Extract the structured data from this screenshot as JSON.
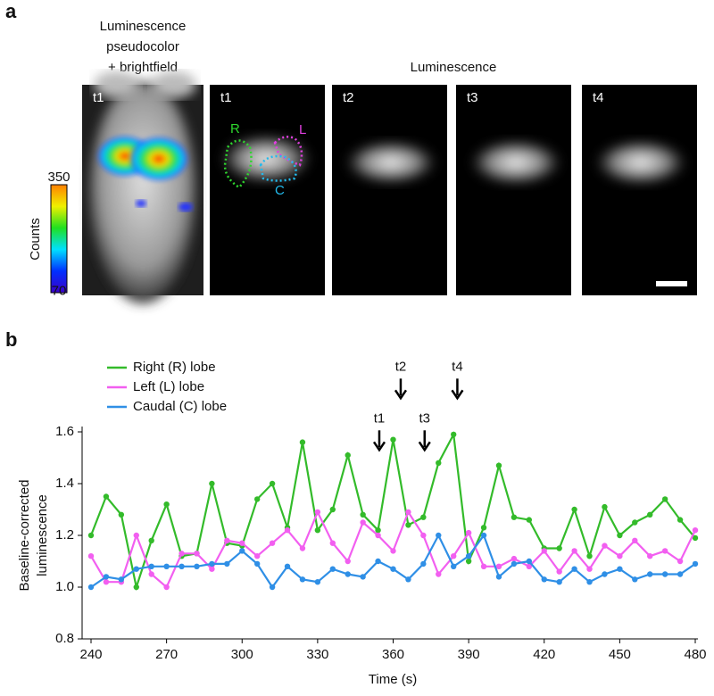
{
  "panel_a": {
    "label": "a",
    "overlay_title": [
      "Luminescence",
      "pseudocolor",
      "+ brightfield"
    ],
    "luminescence_title": "Luminescence",
    "colorbar": {
      "label": "Counts",
      "max": 350,
      "min": 70
    },
    "frames": [
      "t1",
      "t1",
      "t2",
      "t3",
      "t4"
    ],
    "roi_labels": [
      "R",
      "L",
      "C"
    ]
  },
  "chart_data": {
    "type": "line",
    "panel_label": "b",
    "xlabel": "Time (s)",
    "ylabel": [
      "Baseline-corrected",
      "luminescence"
    ],
    "x": [
      240,
      246,
      252,
      258,
      264,
      270,
      276,
      282,
      288,
      294,
      300,
      306,
      312,
      318,
      324,
      330,
      336,
      342,
      348,
      354,
      360,
      366,
      372,
      378,
      384,
      390,
      396,
      402,
      408,
      414,
      420,
      426,
      432,
      438,
      444,
      450,
      456,
      462,
      468,
      474,
      480
    ],
    "series": [
      {
        "name": "Right (R) lobe",
        "color": "#33bb2a",
        "values": [
          1.2,
          1.35,
          1.28,
          1.0,
          1.18,
          1.32,
          1.12,
          1.13,
          1.4,
          1.17,
          1.16,
          1.34,
          1.4,
          1.23,
          1.56,
          1.22,
          1.3,
          1.51,
          1.28,
          1.22,
          1.57,
          1.24,
          1.27,
          1.48,
          1.59,
          1.1,
          1.23,
          1.47,
          1.27,
          1.26,
          1.15,
          1.15,
          1.3,
          1.12,
          1.31,
          1.2,
          1.25,
          1.28,
          1.34,
          1.26,
          1.19
        ]
      },
      {
        "name": "Left (L) lobe",
        "color": "#f25ff0",
        "values": [
          1.12,
          1.02,
          1.02,
          1.2,
          1.05,
          1.0,
          1.13,
          1.13,
          1.07,
          1.18,
          1.17,
          1.12,
          1.17,
          1.22,
          1.15,
          1.29,
          1.17,
          1.1,
          1.25,
          1.2,
          1.14,
          1.29,
          1.2,
          1.05,
          1.12,
          1.21,
          1.08,
          1.08,
          1.11,
          1.08,
          1.14,
          1.06,
          1.14,
          1.07,
          1.16,
          1.12,
          1.18,
          1.12,
          1.14,
          1.1,
          1.22
        ]
      },
      {
        "name": "Caudal (C) lobe",
        "color": "#2f8fe6",
        "values": [
          1.0,
          1.04,
          1.03,
          1.07,
          1.08,
          1.08,
          1.08,
          1.08,
          1.09,
          1.09,
          1.14,
          1.09,
          1.0,
          1.08,
          1.03,
          1.02,
          1.07,
          1.05,
          1.04,
          1.1,
          1.07,
          1.03,
          1.09,
          1.2,
          1.08,
          1.12,
          1.2,
          1.04,
          1.09,
          1.1,
          1.03,
          1.02,
          1.07,
          1.02,
          1.05,
          1.07,
          1.03,
          1.05,
          1.05,
          1.05,
          1.09
        ]
      }
    ],
    "annotations": [
      {
        "text": "t1",
        "x": 354.5,
        "y": 1.53
      },
      {
        "text": "t2",
        "x": 363,
        "y": 1.73
      },
      {
        "text": "t3",
        "x": 372.5,
        "y": 1.53
      },
      {
        "text": "t4",
        "x": 385.5,
        "y": 1.73
      }
    ],
    "xlim": [
      240,
      480
    ],
    "ylim": [
      0.8,
      1.6
    ],
    "xticks": [
      240,
      270,
      300,
      330,
      360,
      390,
      420,
      450,
      480
    ],
    "yticks": [
      0.8,
      {
        "value": 1,
        "label": "1.0"
      },
      1.2,
      1.4,
      1.6
    ]
  }
}
